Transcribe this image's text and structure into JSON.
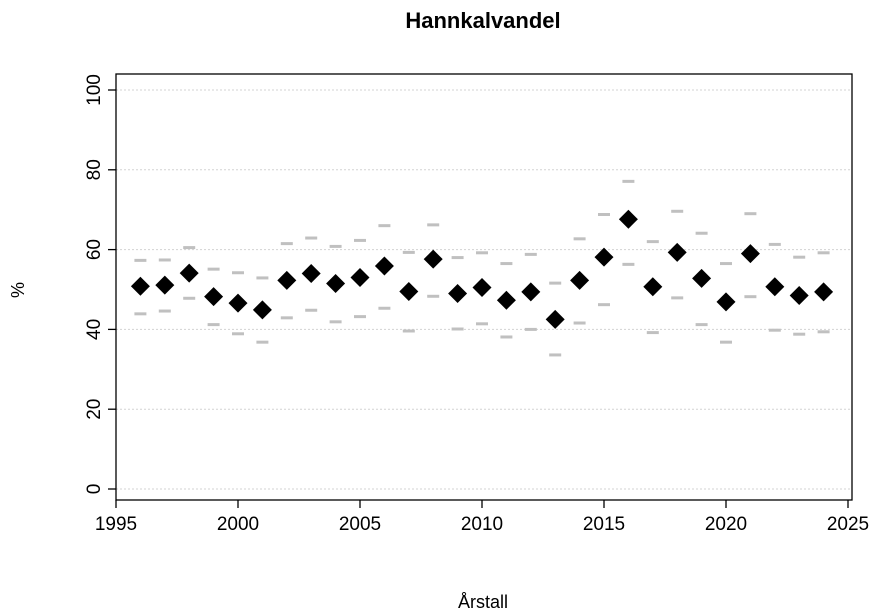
{
  "chart_data": {
    "type": "scatter",
    "title": "Hannkalvandel",
    "xlabel": "Årstall",
    "ylabel": "%",
    "xlim": [
      1995,
      2025
    ],
    "ylim": [
      0,
      100
    ],
    "x_ticks": [
      1995,
      2000,
      2005,
      2010,
      2015,
      2020,
      2025
    ],
    "y_ticks": [
      0,
      20,
      40,
      60,
      80,
      100
    ],
    "grid": "horizontal dotted",
    "colors": {
      "point": "#000000",
      "interval": "#c0c0c0",
      "grid": "#d3d3d3"
    },
    "series": [
      {
        "x": [
          1996,
          1997,
          1998,
          1999,
          2000,
          2001,
          2002,
          2003,
          2004,
          2005,
          2006,
          2007,
          2008,
          2009,
          2010,
          2011,
          2012,
          2013,
          2014,
          2015,
          2016,
          2017,
          2018,
          2019,
          2020,
          2021,
          2022,
          2023,
          2024
        ],
        "y": [
          50.8,
          51.1,
          54.1,
          48.2,
          46.6,
          44.9,
          52.3,
          54.0,
          51.5,
          53.0,
          55.9,
          49.5,
          57.6,
          49.0,
          50.5,
          47.3,
          49.4,
          42.5,
          52.3,
          58.1,
          67.6,
          50.7,
          59.3,
          52.8,
          46.9,
          59.0,
          50.7,
          48.5,
          49.4
        ],
        "lower": [
          43.9,
          44.6,
          47.8,
          41.2,
          38.9,
          36.8,
          42.9,
          44.8,
          41.9,
          43.2,
          45.3,
          39.6,
          48.3,
          40.1,
          41.4,
          38.1,
          40.0,
          33.6,
          41.6,
          46.2,
          56.3,
          39.2,
          47.9,
          41.2,
          36.8,
          48.2,
          39.8,
          38.8,
          39.4
        ],
        "upper": [
          57.3,
          57.4,
          60.5,
          55.1,
          54.2,
          52.9,
          61.5,
          62.9,
          60.8,
          62.3,
          66.0,
          59.3,
          66.2,
          58.0,
          59.2,
          56.5,
          58.8,
          51.6,
          62.7,
          68.8,
          77.1,
          62.0,
          69.6,
          64.1,
          56.5,
          69.0,
          61.3,
          58.1,
          59.2
        ]
      }
    ]
  }
}
